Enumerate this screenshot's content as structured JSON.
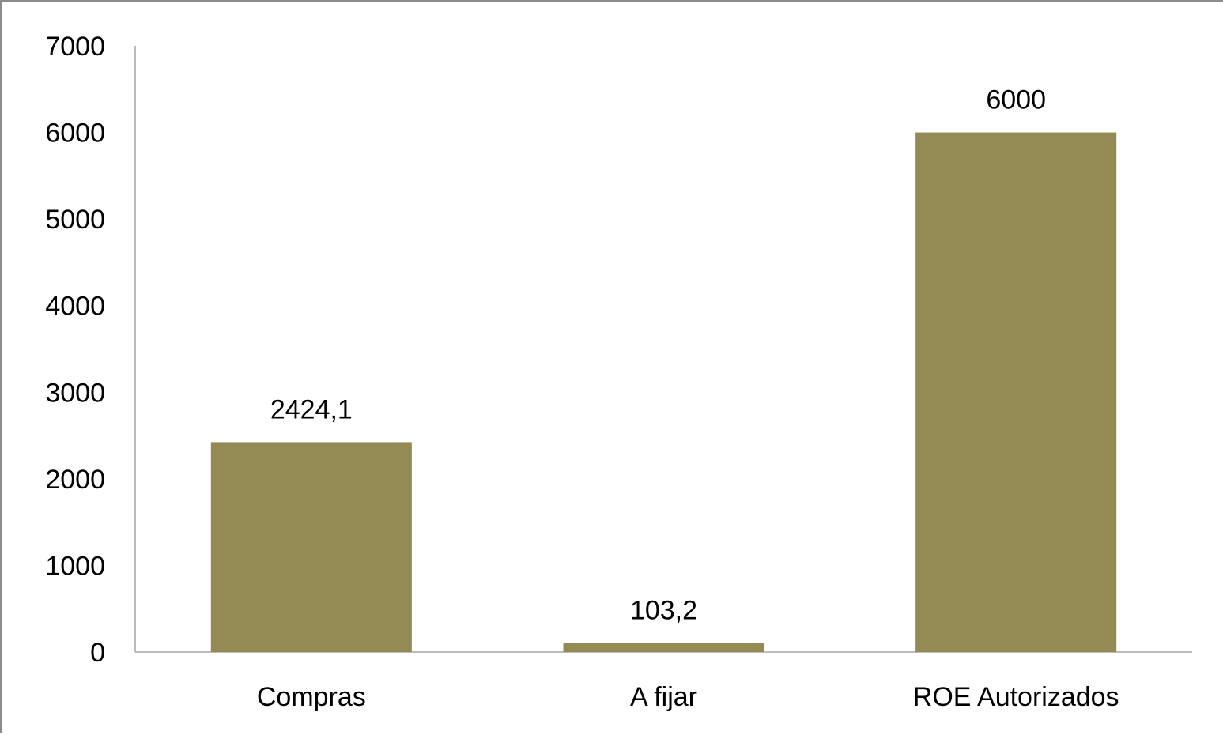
{
  "chart_data": {
    "type": "bar",
    "title": "",
    "xlabel": "",
    "ylabel": "",
    "categories": [
      "Compras",
      "A fijar",
      "ROE Autorizados"
    ],
    "values": [
      2424.1,
      103.2,
      6000
    ],
    "data_labels": [
      "2424,1",
      "103,2",
      "6000"
    ],
    "ylim": [
      0,
      7000
    ],
    "y_ticks": [
      0,
      1000,
      2000,
      3000,
      4000,
      5000,
      6000,
      7000
    ],
    "y_tick_labels": [
      "0",
      "1000",
      "2000",
      "3000",
      "4000",
      "5000",
      "6000",
      "7000"
    ],
    "bar_color": "#948a54",
    "axis_color": "#a6a6a6",
    "grid": false,
    "legend": "none"
  }
}
